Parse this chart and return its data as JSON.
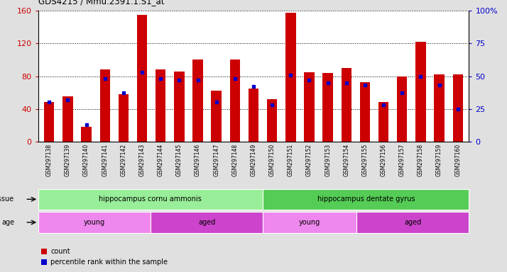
{
  "title": "GDS4215 / Mmu.2391.1.S1_at",
  "samples": [
    "GSM297138",
    "GSM297139",
    "GSM297140",
    "GSM297141",
    "GSM297142",
    "GSM297143",
    "GSM297144",
    "GSM297145",
    "GSM297146",
    "GSM297147",
    "GSM297148",
    "GSM297149",
    "GSM297150",
    "GSM297151",
    "GSM297152",
    "GSM297153",
    "GSM297154",
    "GSM297155",
    "GSM297156",
    "GSM297157",
    "GSM297158",
    "GSM297159",
    "GSM297160"
  ],
  "count_values": [
    48,
    55,
    18,
    88,
    58,
    155,
    88,
    86,
    100,
    62,
    100,
    65,
    52,
    158,
    85,
    84,
    90,
    73,
    48,
    80,
    122,
    82,
    82
  ],
  "percentile_values": [
    30,
    32,
    13,
    48,
    37,
    53,
    48,
    47,
    47,
    30,
    48,
    42,
    28,
    51,
    47,
    45,
    45,
    43,
    28,
    37,
    50,
    43,
    25
  ],
  "bar_color": "#cc0000",
  "dot_color": "#0000cc",
  "ylim_left": [
    0,
    160
  ],
  "ylim_right": [
    0,
    100
  ],
  "yticks_left": [
    0,
    40,
    80,
    120,
    160
  ],
  "yticks_right": [
    0,
    25,
    50,
    75,
    100
  ],
  "ytick_labels_right": [
    "0",
    "25",
    "50",
    "75",
    "100%"
  ],
  "tissue_groups": [
    {
      "label": "hippocampus cornu ammonis",
      "start": 0,
      "end": 12,
      "color": "#99ee99"
    },
    {
      "label": "hippocampus dentate gyrus",
      "start": 12,
      "end": 23,
      "color": "#55cc55"
    }
  ],
  "age_groups": [
    {
      "label": "young",
      "start": 0,
      "end": 6,
      "color": "#ee88ee"
    },
    {
      "label": "aged",
      "start": 6,
      "end": 12,
      "color": "#cc44cc"
    },
    {
      "label": "young",
      "start": 12,
      "end": 17,
      "color": "#ee88ee"
    },
    {
      "label": "aged",
      "start": 17,
      "end": 23,
      "color": "#cc44cc"
    }
  ],
  "bg_color": "#e0e0e0",
  "plot_bg": "#ffffff",
  "tissue_label": "tissue",
  "age_label": "age"
}
